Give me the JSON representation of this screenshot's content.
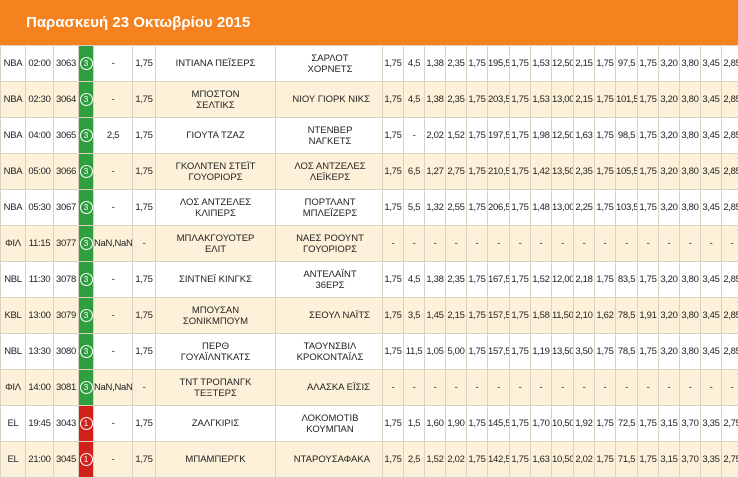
{
  "header": {
    "title": "Παρασκευή 23 Οκτωβρίου 2015"
  },
  "table": {
    "rows": [
      {
        "league": "NBA",
        "time": "02:00",
        "code": "3063",
        "status": "3",
        "status_color": "#2e9e3e",
        "handicap": "-",
        "line": "1,75",
        "home": "ΙΝΤΙΑΝΑ ΠΕΪΣΕΡΣ",
        "away": "ΣΑΡΛΟΤ ΧΟΡΝΕΤΣ",
        "odds": [
          "1,75",
          "4,5",
          "1,38",
          "2,35",
          "1,75",
          "195,5",
          "1,75",
          "1,53",
          "12,50",
          "2,15",
          "1,75",
          "97,5",
          "1,75",
          "3,20",
          "3,80",
          "3,45",
          "2,85"
        ]
      },
      {
        "league": "NBA",
        "time": "02:30",
        "code": "3064",
        "status": "3",
        "status_color": "#2e9e3e",
        "handicap": "-",
        "line": "1,75",
        "home": "ΜΠΟΣΤΟΝ ΣΕΛΤΙΚΣ",
        "away": "ΝΙΟΥ ΓΙΟΡΚ ΝΙΚΣ",
        "odds": [
          "1,75",
          "4,5",
          "1,38",
          "2,35",
          "1,75",
          "203,5",
          "1,75",
          "1,53",
          "13,00",
          "2,15",
          "1,75",
          "101,5",
          "1,75",
          "3,20",
          "3,80",
          "3,45",
          "2,85"
        ]
      },
      {
        "league": "NBA",
        "time": "04:00",
        "code": "3065",
        "status": "3",
        "status_color": "#2e9e3e",
        "handicap": "2,5",
        "line": "1,75",
        "home": "ΓΙΟΥΤΑ ΤΖΑΖ",
        "away": "ΝΤΕΝΒΕΡ ΝΑΓΚΕΤΣ",
        "odds": [
          "1,75",
          "-",
          "2,02",
          "1,52",
          "1,75",
          "197,5",
          "1,75",
          "1,98",
          "12,50",
          "1,63",
          "1,75",
          "98,5",
          "1,75",
          "3,20",
          "3,80",
          "3,45",
          "2,85"
        ]
      },
      {
        "league": "NBA",
        "time": "05:00",
        "code": "3066",
        "status": "3",
        "status_color": "#2e9e3e",
        "handicap": "-",
        "line": "1,75",
        "home": "ΓΚΟΛΝΤΕΝ ΣΤΕΪΤ ΓΟΥΟΡΙΟΡΣ",
        "away": "ΛΟΣ ΑΝΤΖΕΛΕΣ ΛΕΪΚΕΡΣ",
        "odds": [
          "1,75",
          "6,5",
          "1,27",
          "2,75",
          "1,75",
          "210,5",
          "1,75",
          "1,42",
          "13,50",
          "2,35",
          "1,75",
          "105,5",
          "1,75",
          "3,20",
          "3,80",
          "3,45",
          "2,85"
        ]
      },
      {
        "league": "NBA",
        "time": "05:30",
        "code": "3067",
        "status": "3",
        "status_color": "#2e9e3e",
        "handicap": "-",
        "line": "1,75",
        "home": "ΛΟΣ ΑΝΤΖΕΛΕΣ ΚΛΙΠΕΡΣ",
        "away": "ΠΟΡΤΛΑΝΤ ΜΠΛΕΪΖΕΡΣ",
        "odds": [
          "1,75",
          "5,5",
          "1,32",
          "2,55",
          "1,75",
          "206,5",
          "1,75",
          "1,48",
          "13,00",
          "2,25",
          "1,75",
          "103,5",
          "1,75",
          "3,20",
          "3,80",
          "3,45",
          "2,85"
        ]
      },
      {
        "league": "ΦΙΛ",
        "time": "11:15",
        "code": "3077",
        "status": "3",
        "status_color": "#2e9e3e",
        "handicap": "NaN,NaN",
        "line": "-",
        "home": "ΜΠΛΑΚΓΟΥΟΤΕΡ ΕΛΙΤ",
        "away": "ΝΑΕΣ ΡΟΟΥΝΤ ΓΟΥΟΡΙΟΡΣ",
        "odds": [
          "-",
          "-",
          "-",
          "-",
          "-",
          "-",
          "-",
          "-",
          "-",
          "-",
          "-",
          "-",
          "-",
          "-",
          "-",
          "-",
          "-"
        ]
      },
      {
        "league": "NBL",
        "time": "11:30",
        "code": "3078",
        "status": "3",
        "status_color": "#2e9e3e",
        "handicap": "-",
        "line": "1,75",
        "home": "ΣΙΝΤΝΕΪ ΚΙΝΓΚΣ",
        "away": "ΑΝΤΕΛΑΪΝΤ 36ΕΡΣ",
        "odds": [
          "1,75",
          "4,5",
          "1,38",
          "2,35",
          "1,75",
          "167,5",
          "1,75",
          "1,52",
          "12,00",
          "2,18",
          "1,75",
          "83,5",
          "1,75",
          "3,20",
          "3,80",
          "3,45",
          "2,85"
        ]
      },
      {
        "league": "KBL",
        "time": "13:00",
        "code": "3079",
        "status": "3",
        "status_color": "#2e9e3e",
        "handicap": "-",
        "line": "1,75",
        "home": "ΜΠΟΥΣΑΝ ΣΟΝΙΚΜΠΟΥΜ",
        "away": "ΣΕΟΥΛ ΝΑΪΤΣ",
        "odds": [
          "1,75",
          "3,5",
          "1,45",
          "2,15",
          "1,75",
          "157,5",
          "1,75",
          "1,58",
          "11,50",
          "2,10",
          "1,62",
          "78,5",
          "1,91",
          "3,20",
          "3,80",
          "3,45",
          "2,85"
        ]
      },
      {
        "league": "NBL",
        "time": "13:30",
        "code": "3080",
        "status": "3",
        "status_color": "#2e9e3e",
        "handicap": "-",
        "line": "1,75",
        "home": "ΠΕΡΘ ΓΟΥΑΪΛΝΤΚΑΤΣ",
        "away": "ΤΑΟΥΝΣΒΙΛ ΚΡΟΚΟΝΤΑΪΛΣ",
        "odds": [
          "1,75",
          "11,5",
          "1,05",
          "5,00",
          "1,75",
          "157,5",
          "1,75",
          "1,19",
          "13,50",
          "3,50",
          "1,75",
          "78,5",
          "1,75",
          "3,20",
          "3,80",
          "3,45",
          "2,85"
        ]
      },
      {
        "league": "ΦΙΛ",
        "time": "14:00",
        "code": "3081",
        "status": "3",
        "status_color": "#2e9e3e",
        "handicap": "NaN,NaN",
        "line": "-",
        "home": "ΤΝΤ ΤΡΟΠΑΝΓΚ ΤΕΞΤΕΡΣ",
        "away": "ΑΛΑΣΚΑ ΕΪΣΙΣ",
        "odds": [
          "-",
          "-",
          "-",
          "-",
          "-",
          "-",
          "-",
          "-",
          "-",
          "-",
          "-",
          "-",
          "-",
          "-",
          "-",
          "-",
          "-"
        ]
      },
      {
        "league": "EL",
        "time": "19:45",
        "code": "3043",
        "status": "1",
        "status_color": "#d0221b",
        "handicap": "-",
        "line": "1,75",
        "home": "ΖΑΛΓΚΙΡΙΣ",
        "away": "ΛΟΚΟΜΟΤΙΒ ΚΟΥΜΠΑΝ",
        "odds": [
          "1,75",
          "1,5",
          "1,60",
          "1,90",
          "1,75",
          "145,5",
          "1,75",
          "1,70",
          "10,50",
          "1,92",
          "1,75",
          "72,5",
          "1,75",
          "3,15",
          "3,70",
          "3,35",
          "2,75"
        ]
      },
      {
        "league": "EL",
        "time": "21:00",
        "code": "3045",
        "status": "1",
        "status_color": "#d0221b",
        "handicap": "-",
        "line": "1,75",
        "home": "ΜΠΑΜΠΕΡΓΚ",
        "away": "ΝΤΑΡΟΥΣΑΦΑΚΑ",
        "odds": [
          "1,75",
          "2,5",
          "1,52",
          "2,02",
          "1,75",
          "142,5",
          "1,75",
          "1,63",
          "10,50",
          "2,02",
          "1,75",
          "71,5",
          "1,75",
          "3,15",
          "3,70",
          "3,35",
          "2,75"
        ]
      }
    ]
  }
}
